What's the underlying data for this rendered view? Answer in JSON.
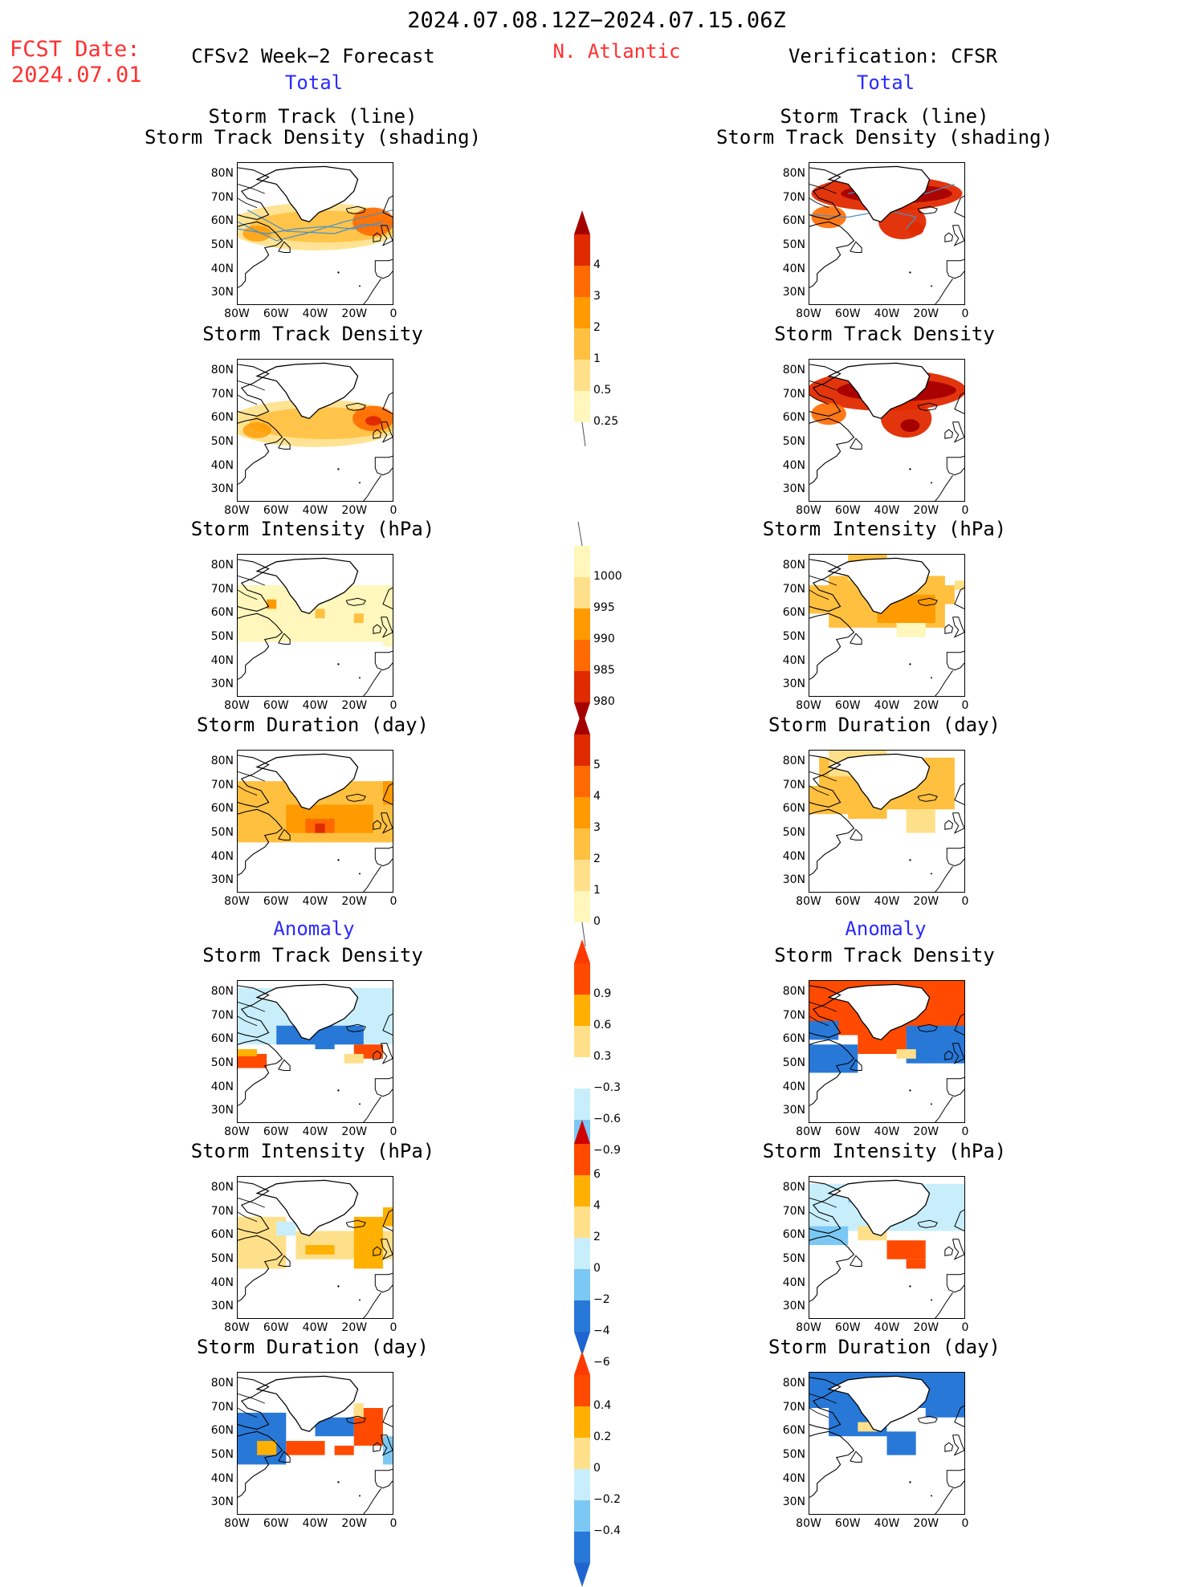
{
  "header": {
    "period": "2024.07.08.12Z−2024.07.15.06Z",
    "fcst_label": "FCST Date:",
    "fcst_date": "2024.07.01",
    "left_title": "CFSv2 Week−2 Forecast",
    "region": "N. Atlantic",
    "right_title": "Verification: CFSR",
    "total_label": "Total",
    "anomaly_label": "Anomaly"
  },
  "axes": {
    "lat_labels": [
      "80N",
      "70N",
      "60N",
      "50N",
      "40N",
      "30N"
    ],
    "lon_labels": [
      "80W",
      "60W",
      "40W",
      "20W",
      "0"
    ]
  },
  "panels": {
    "track_line_title": "Storm Track (line)",
    "track_shading_title": "Storm Track Density (shading)",
    "density_title": "Storm Track Density",
    "intensity_title": "Storm Intensity (hPa)",
    "duration_title": "Storm Duration (day)"
  },
  "colorbars": {
    "density": [
      "4",
      "3",
      "2",
      "1",
      "0.5",
      "0.25"
    ],
    "intensity": [
      "1000",
      "995",
      "990",
      "985",
      "980"
    ],
    "duration": [
      "5",
      "4",
      "3",
      "2",
      "1",
      "0"
    ],
    "density_anom": [
      "0.9",
      "0.6",
      "0.3",
      "−0.3",
      "−0.6",
      "−0.9"
    ],
    "intensity_anom": [
      "6",
      "4",
      "2",
      "0",
      "−2",
      "−4",
      "−6"
    ],
    "duration_anom": [
      "0.4",
      "0.2",
      "0",
      "−0.2",
      "−0.4"
    ]
  },
  "colors": {
    "warm": [
      "#fff7bb",
      "#ffe08a",
      "#ffc040",
      "#ff9a00",
      "#ff6a00",
      "#e02a00",
      "#a50000"
    ],
    "anom_pos": [
      "#ffe08a",
      "#ffb000",
      "#ff4a00"
    ],
    "anom_neg": [
      "#c8eefb",
      "#7cc8f5",
      "#2878d8"
    ],
    "track_line": "#4a90c8"
  }
}
